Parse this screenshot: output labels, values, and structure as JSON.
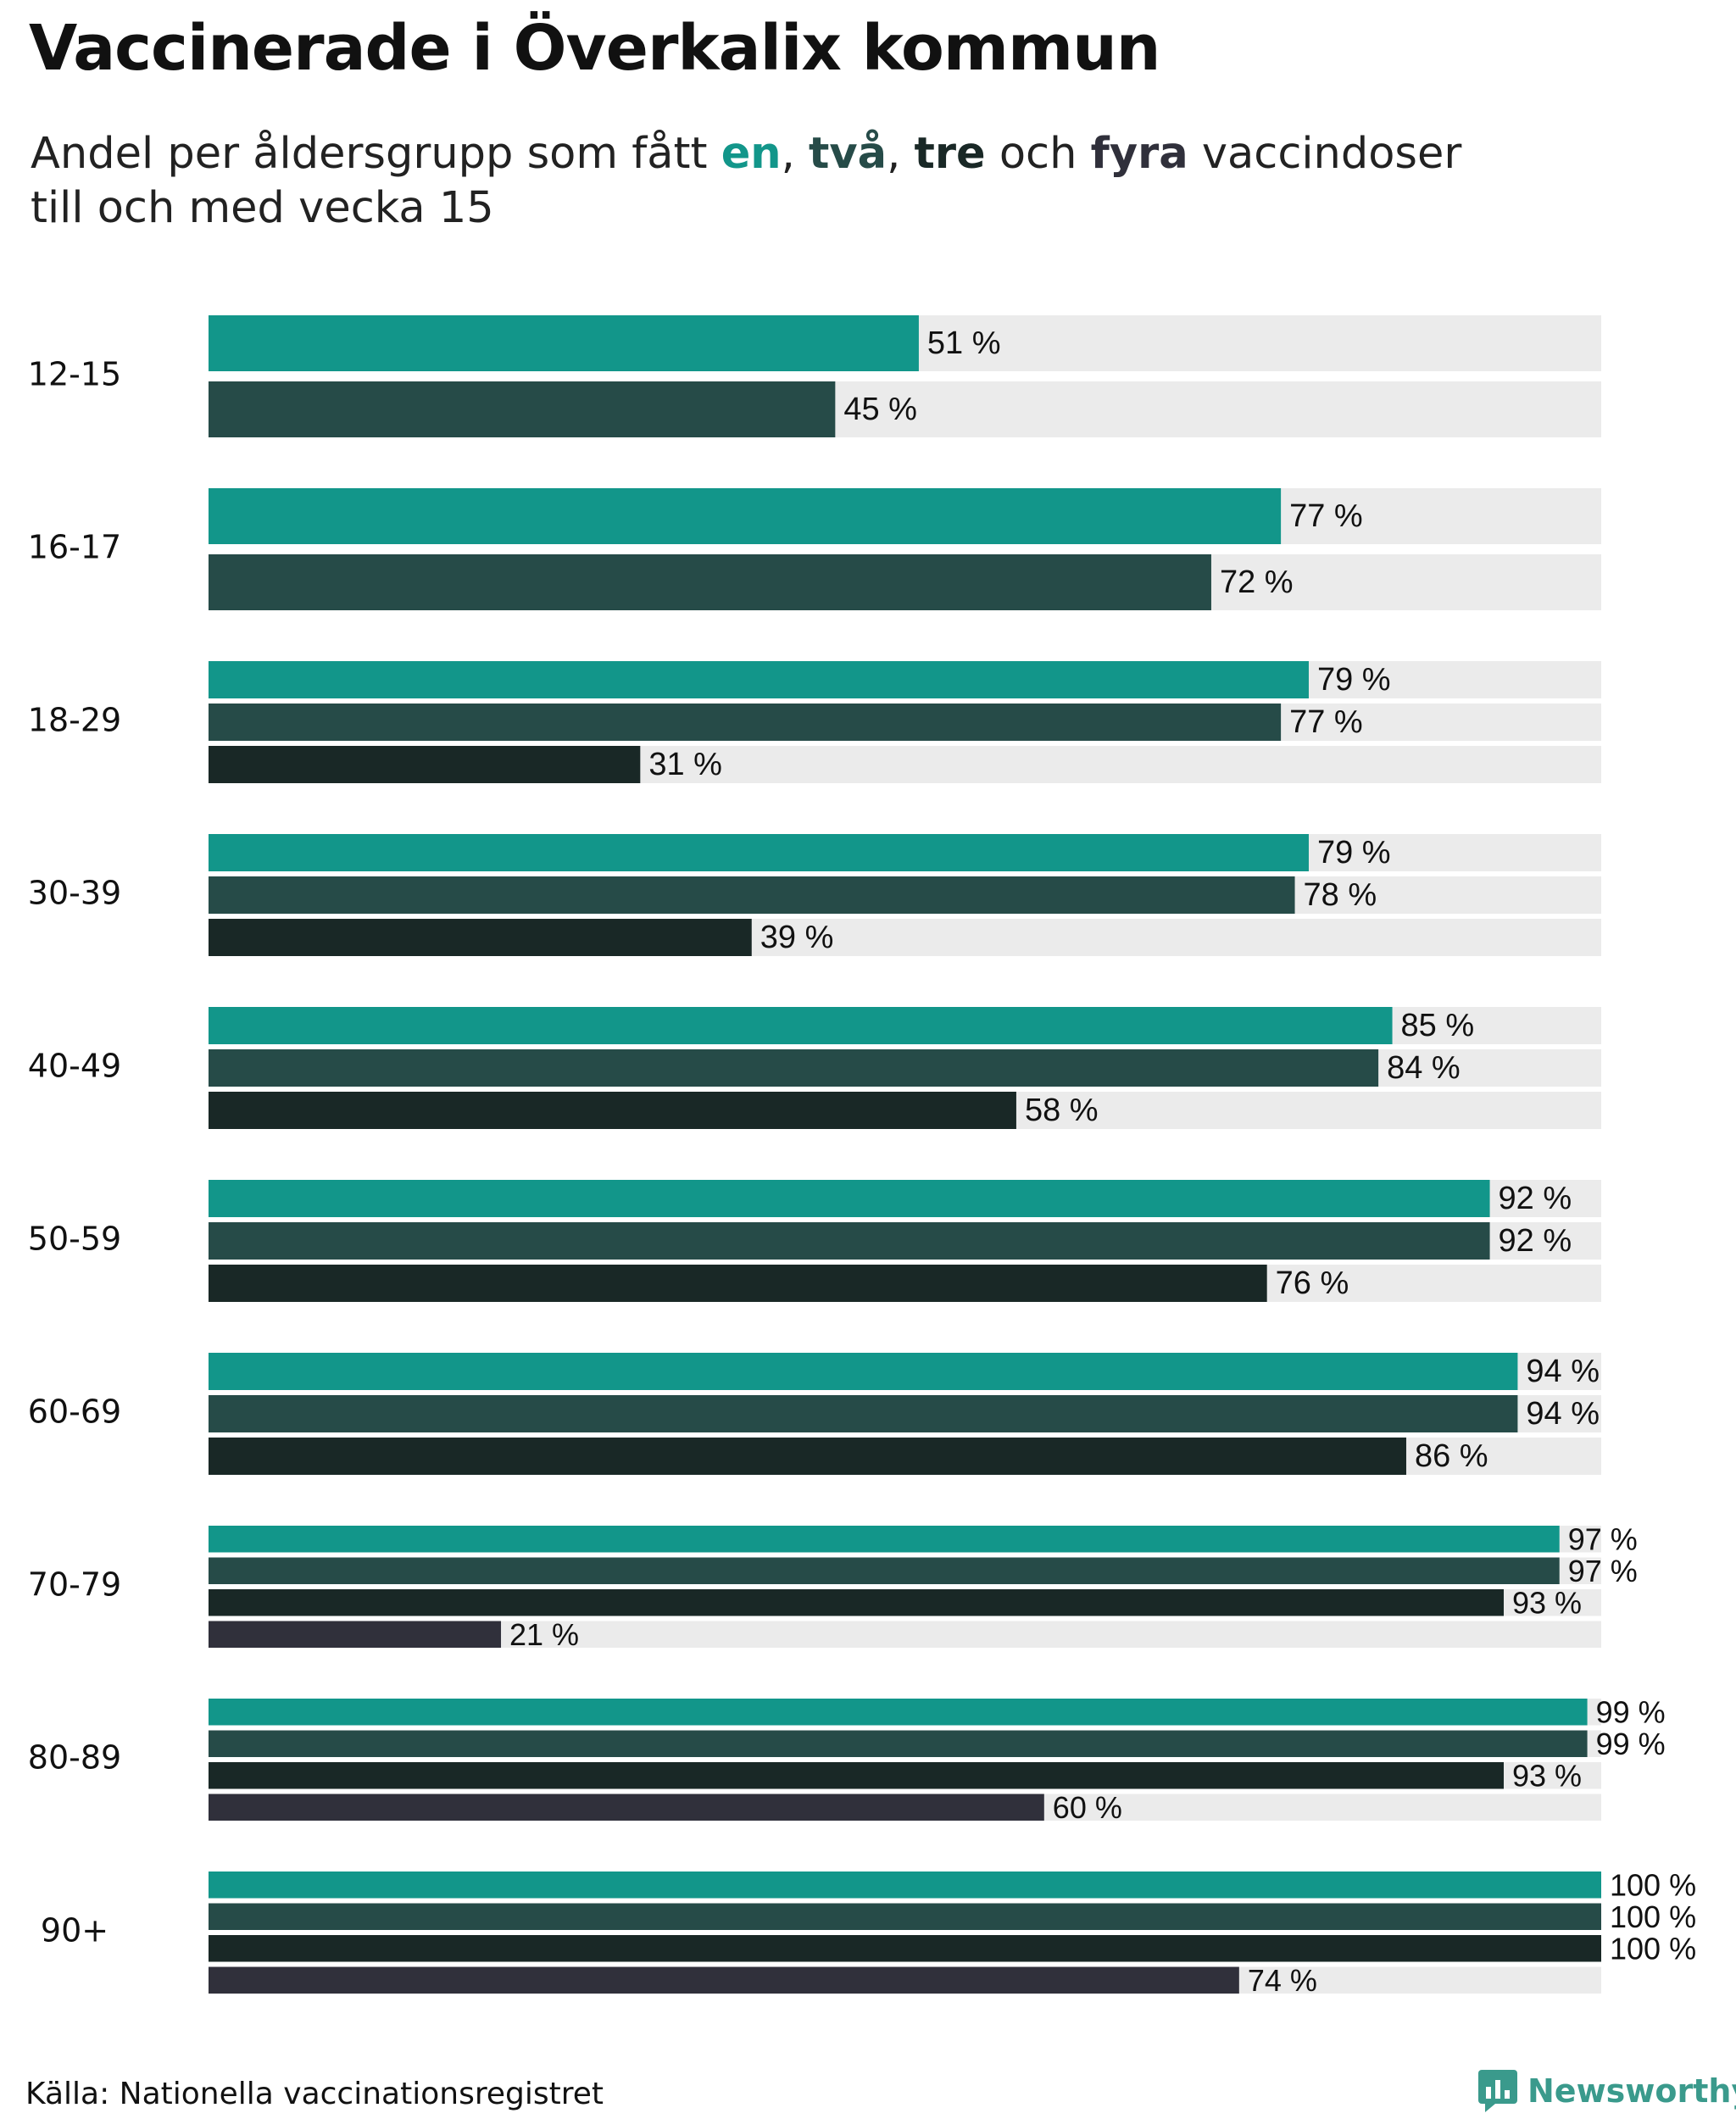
{
  "title": "Vaccinerade i Överkalix kommun",
  "subtitle": {
    "prefix": "Andel per åldersgrupp som fått ",
    "en": "en",
    "sep1": ", ",
    "tva": "två",
    "sep2": ", ",
    "tre": "tre",
    "och": " och ",
    "fyra": "fyra",
    "suffix": " vaccindoser",
    "line2": "till och med vecka 15"
  },
  "colors": {
    "en": "#12968a",
    "tva": "#264b48",
    "tre": "#192826",
    "fyra": "#30303b",
    "track": "#ebebeb"
  },
  "chart_data": {
    "type": "bar",
    "orientation": "horizontal",
    "title": "Vaccinerade i Överkalix kommun",
    "xlim": [
      0,
      100
    ],
    "unit": "%",
    "value_suffix": " %",
    "series_names": [
      "en",
      "två",
      "tre",
      "fyra"
    ],
    "groups": [
      {
        "label": "12-15",
        "values": [
          51,
          45
        ]
      },
      {
        "label": "16-17",
        "values": [
          77,
          72
        ]
      },
      {
        "label": "18-29",
        "values": [
          79,
          77,
          31
        ]
      },
      {
        "label": "30-39",
        "values": [
          79,
          78,
          39
        ]
      },
      {
        "label": "40-49",
        "values": [
          85,
          84,
          58
        ]
      },
      {
        "label": "50-59",
        "values": [
          92,
          92,
          76
        ]
      },
      {
        "label": "60-69",
        "values": [
          94,
          94,
          86
        ]
      },
      {
        "label": "70-79",
        "values": [
          97,
          97,
          93,
          21
        ]
      },
      {
        "label": "80-89",
        "values": [
          99,
          99,
          93,
          60
        ]
      },
      {
        "label": "90+",
        "values": [
          100,
          100,
          100,
          74
        ]
      }
    ]
  },
  "footer": {
    "source": "Källa: Nationella vaccinationsregistret",
    "logo_text": "Newsworthy"
  }
}
